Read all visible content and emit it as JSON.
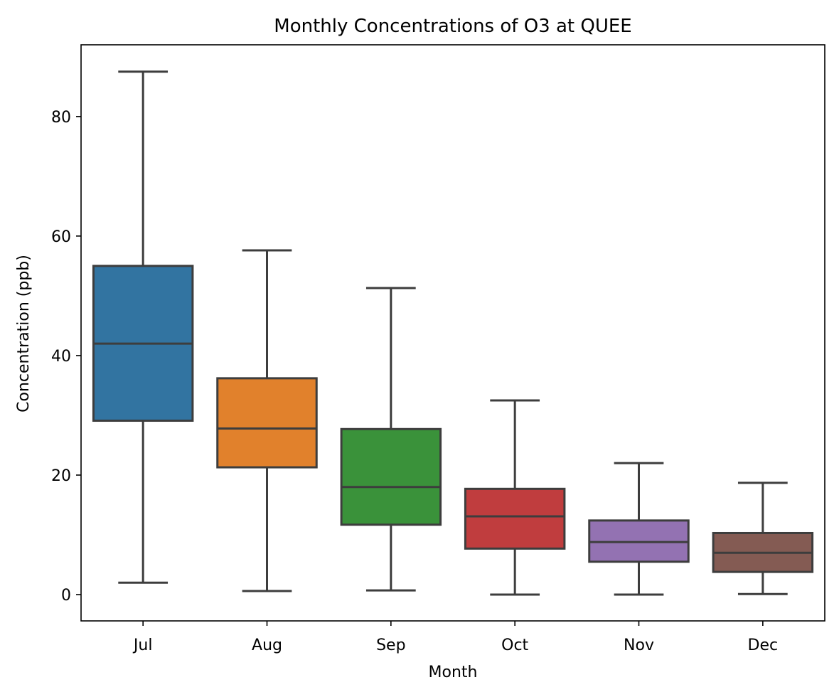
{
  "chart_data": {
    "type": "box",
    "title": "Monthly Concentrations of O3 at QUEE",
    "xlabel": "Month",
    "ylabel": "Concentration (ppb)",
    "ylim": [
      -4.4,
      92
    ],
    "yticks": [
      0,
      20,
      40,
      60,
      80
    ],
    "grid": false,
    "categories": [
      "Jul",
      "Aug",
      "Sep",
      "Oct",
      "Nov",
      "Dec"
    ],
    "colors": [
      "#3274a1",
      "#e1812c",
      "#3a923a",
      "#c03d3e",
      "#9372b2",
      "#845b53"
    ],
    "line_color": "#3d3d3d",
    "boxes": [
      {
        "label": "Jul",
        "whislo": 2.0,
        "q1": 29.1,
        "med": 42.0,
        "q3": 55.0,
        "whishi": 87.5
      },
      {
        "label": "Aug",
        "whislo": 0.6,
        "q1": 21.3,
        "med": 27.8,
        "q3": 36.2,
        "whishi": 57.6
      },
      {
        "label": "Sep",
        "whislo": 0.7,
        "q1": 11.7,
        "med": 18.0,
        "q3": 27.7,
        "whishi": 51.3
      },
      {
        "label": "Oct",
        "whislo": 0.0,
        "q1": 7.7,
        "med": 13.1,
        "q3": 17.7,
        "whishi": 32.5
      },
      {
        "label": "Nov",
        "whislo": 0.0,
        "q1": 5.5,
        "med": 8.8,
        "q3": 12.4,
        "whishi": 22.0
      },
      {
        "label": "Dec",
        "whislo": 0.1,
        "q1": 3.8,
        "med": 7.0,
        "q3": 10.3,
        "whishi": 18.7
      }
    ]
  }
}
